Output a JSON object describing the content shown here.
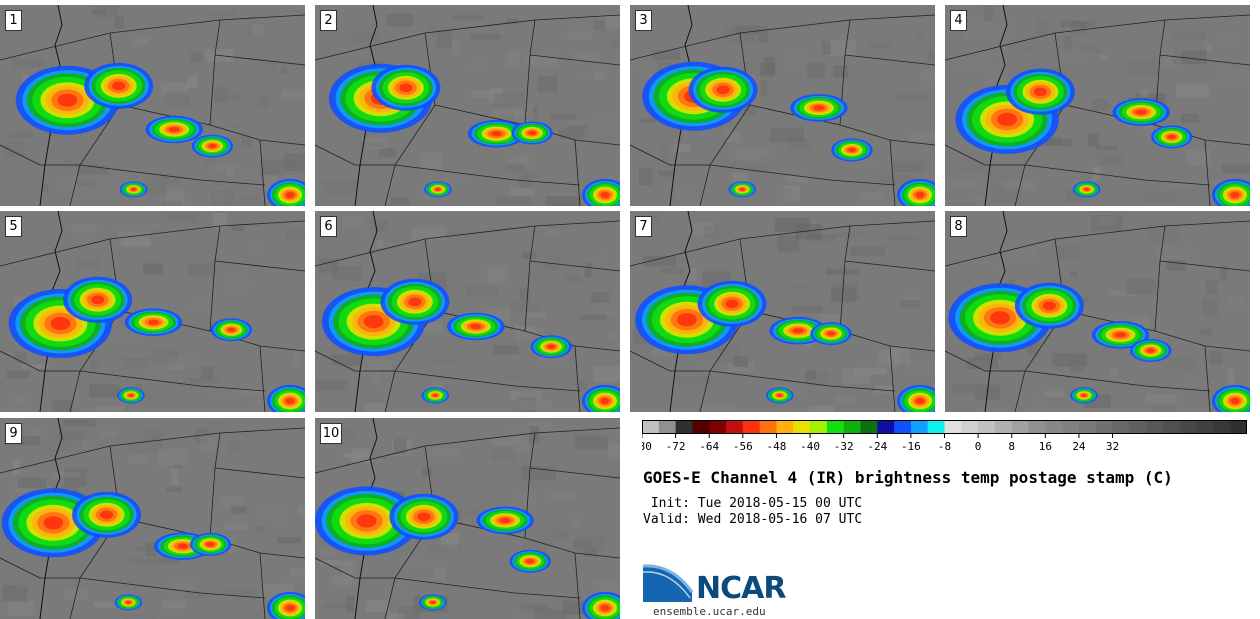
{
  "panels": [
    {
      "label": "1"
    },
    {
      "label": "2"
    },
    {
      "label": "3"
    },
    {
      "label": "4"
    },
    {
      "label": "5"
    },
    {
      "label": "6"
    },
    {
      "label": "7"
    },
    {
      "label": "8"
    },
    {
      "label": "9"
    },
    {
      "label": "10"
    }
  ],
  "colorbar": {
    "ticks": [
      "-80",
      "-72",
      "-64",
      "-56",
      "-48",
      "-40",
      "-32",
      "-24",
      "-16",
      "-8",
      "0",
      "8",
      "16",
      "24",
      "32"
    ],
    "colors": [
      "#c0c0c0",
      "#909090",
      "#303030",
      "#500000",
      "#800000",
      "#c01010",
      "#ff3010",
      "#ff7010",
      "#ffb010",
      "#e8e000",
      "#a0f000",
      "#10e010",
      "#10b010",
      "#107010",
      "#1010a0",
      "#1050ff",
      "#10a0ff",
      "#10f0f0",
      "#e0e0e0",
      "#d0d0d0",
      "#c0c0c0",
      "#b0b0b0",
      "#a0a0a0",
      "#909090",
      "#888888",
      "#808080",
      "#787878",
      "#707070",
      "#686868",
      "#606060",
      "#585858",
      "#505050",
      "#484848",
      "#404040",
      "#383838",
      "#303030"
    ]
  },
  "title": "GOES-E Channel 4 (IR) brightness temp postage stamp (C)",
  "init": " Init: Tue 2018-05-15 00 UTC",
  "valid": "Valid: Wed 2018-05-16 07 UTC",
  "logo": {
    "text": "NCAR",
    "url": "ensemble.ucar.edu"
  }
}
